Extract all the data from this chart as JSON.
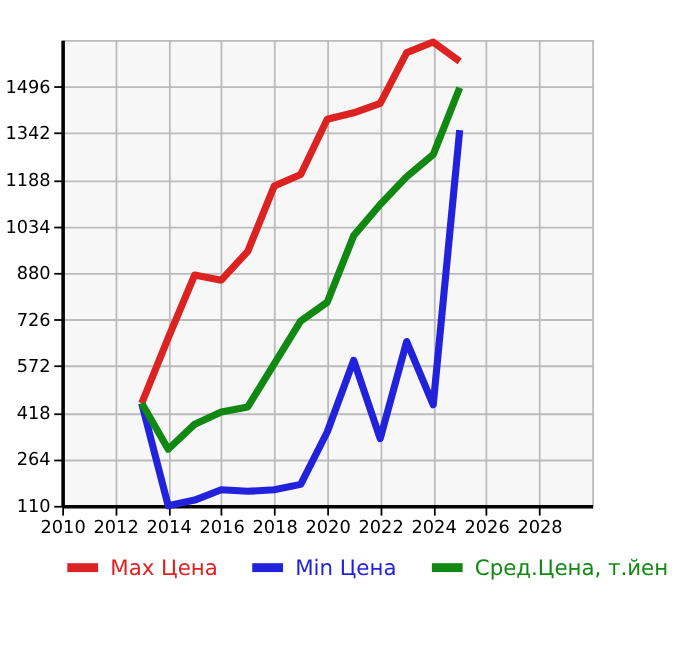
{
  "chart_data": {
    "type": "line",
    "x": [
      2013,
      2014,
      2015,
      2016,
      2017,
      2018,
      2019,
      2020,
      2021,
      2022,
      2023,
      2024,
      2025
    ],
    "series": [
      {
        "name": "Max Цена",
        "color": "#dd2222",
        "values": [
          449,
          665,
          873,
          856,
          951,
          1167,
          1205,
          1388,
          1409,
          1440,
          1608,
          1643,
          1579
        ]
      },
      {
        "name": "Min Цена",
        "color": "#2222dd",
        "values": [
          449,
          110,
          129,
          163,
          158,
          163,
          181,
          354,
          591,
          332,
          653,
          444,
          1352
        ]
      },
      {
        "name": "Сред.Цена, т.йен",
        "color": "#118811",
        "values": [
          449,
          297,
          380,
          420,
          437,
          579,
          721,
          783,
          1003,
          1106,
          1198,
          1271,
          1492
        ]
      }
    ],
    "xlim": [
      2010,
      2030
    ],
    "xticks": [
      2010,
      2012,
      2014,
      2016,
      2018,
      2020,
      2022,
      2024,
      2026,
      2028
    ],
    "ylim": [
      110,
      1650
    ],
    "yticks": [
      110,
      264,
      418,
      572,
      726,
      880,
      1034,
      1188,
      1342,
      1496
    ],
    "grid": true,
    "legend": "bottom",
    "marker": "none",
    "line_style": "solid"
  }
}
